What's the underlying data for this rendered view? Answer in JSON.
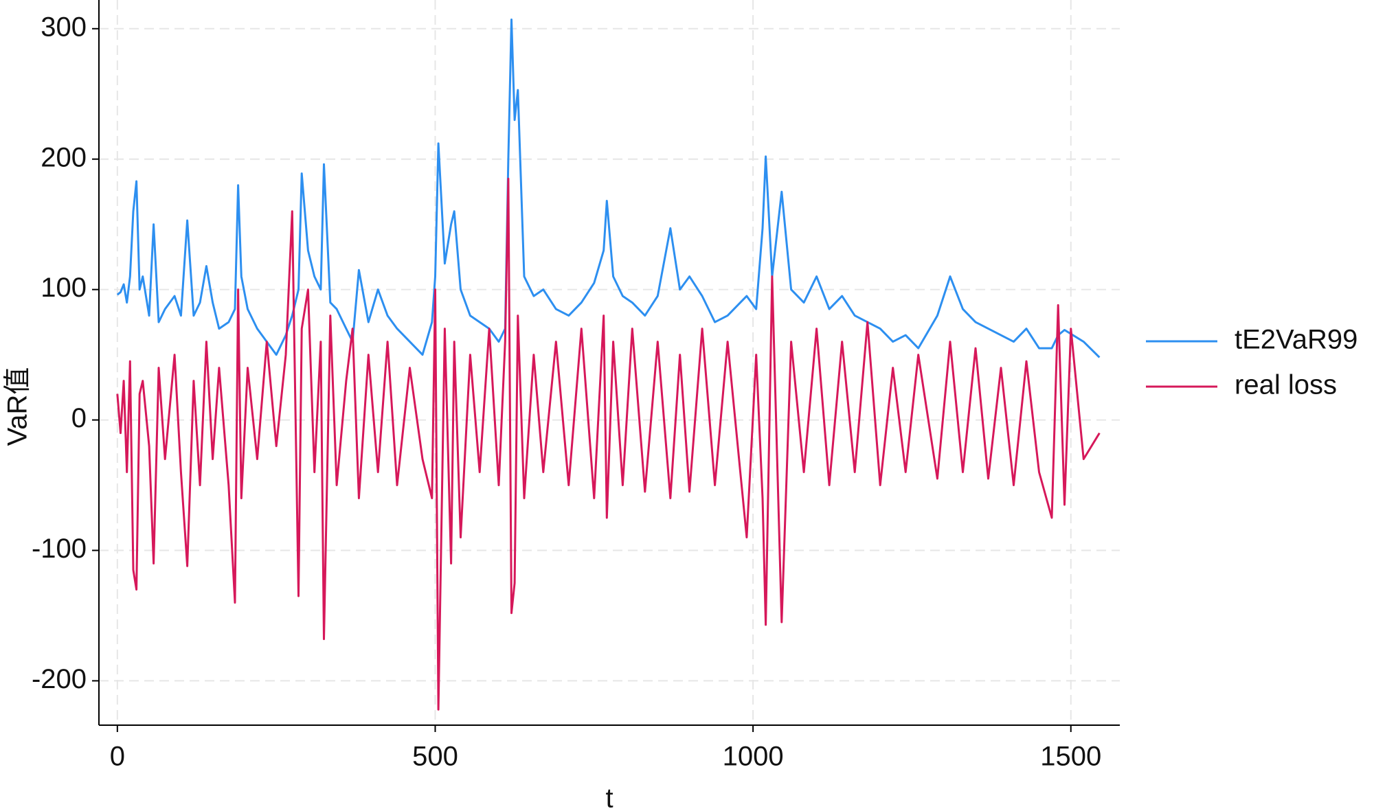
{
  "chart_data": {
    "type": "line",
    "x_label": "t",
    "y_label": "VaR值",
    "x": [
      0,
      5,
      10,
      15,
      20,
      25,
      30,
      35,
      40,
      50,
      57,
      65,
      75,
      90,
      100,
      110,
      120,
      130,
      140,
      150,
      160,
      175,
      185,
      190,
      195,
      205,
      220,
      235,
      250,
      265,
      275,
      285,
      290,
      300,
      310,
      320,
      325,
      335,
      345,
      360,
      370,
      380,
      395,
      410,
      425,
      440,
      460,
      480,
      495,
      500,
      505,
      515,
      525,
      530,
      540,
      555,
      570,
      585,
      600,
      610,
      615,
      620,
      625,
      630,
      640,
      655,
      670,
      690,
      710,
      730,
      750,
      765,
      770,
      780,
      795,
      810,
      830,
      850,
      870,
      885,
      900,
      920,
      940,
      960,
      980,
      990,
      1005,
      1015,
      1020,
      1030,
      1045,
      1060,
      1080,
      1100,
      1120,
      1140,
      1160,
      1180,
      1200,
      1220,
      1240,
      1260,
      1290,
      1310,
      1330,
      1350,
      1370,
      1390,
      1410,
      1430,
      1450,
      1470,
      1480,
      1490,
      1500,
      1520,
      1545
    ],
    "series": [
      {
        "name": "tE2VaR99",
        "color": "#2d8ff0",
        "values": [
          96,
          98,
          104,
          90,
          110,
          160,
          183,
          100,
          110,
          80,
          150,
          75,
          85,
          95,
          80,
          153,
          80,
          90,
          118,
          90,
          70,
          75,
          85,
          180,
          110,
          85,
          70,
          60,
          50,
          65,
          80,
          100,
          189,
          130,
          110,
          100,
          196,
          90,
          85,
          70,
          60,
          115,
          75,
          100,
          80,
          70,
          60,
          50,
          75,
          110,
          212,
          120,
          150,
          160,
          100,
          80,
          75,
          70,
          60,
          70,
          200,
          307,
          230,
          253,
          110,
          95,
          100,
          85,
          80,
          90,
          105,
          130,
          168,
          110,
          95,
          90,
          80,
          95,
          147,
          100,
          110,
          95,
          75,
          80,
          90,
          95,
          85,
          147,
          202,
          110,
          175,
          100,
          90,
          110,
          85,
          95,
          80,
          75,
          70,
          60,
          65,
          55,
          80,
          110,
          85,
          75,
          70,
          65,
          60,
          70,
          55,
          55,
          65,
          69,
          66,
          60,
          48
        ]
      },
      {
        "name": "real loss",
        "color": "#d6185a",
        "values": [
          20,
          -10,
          30,
          -40,
          45,
          -115,
          -130,
          20,
          30,
          -20,
          -110,
          40,
          -30,
          50,
          -40,
          -112,
          30,
          -50,
          60,
          -30,
          40,
          -50,
          -140,
          100,
          -60,
          40,
          -30,
          60,
          -20,
          50,
          160,
          -135,
          70,
          100,
          -40,
          60,
          -168,
          80,
          -50,
          30,
          70,
          -60,
          50,
          -40,
          60,
          -50,
          40,
          -30,
          -60,
          100,
          -222,
          70,
          -110,
          60,
          -90,
          50,
          -40,
          70,
          -50,
          60,
          185,
          -148,
          -125,
          80,
          -60,
          50,
          -40,
          60,
          -50,
          70,
          -60,
          80,
          -75,
          60,
          -50,
          70,
          -55,
          60,
          -60,
          50,
          -55,
          70,
          -50,
          60,
          -40,
          -90,
          50,
          -60,
          -157,
          110,
          -155,
          60,
          -40,
          70,
          -50,
          60,
          -40,
          75,
          -50,
          40,
          -40,
          50,
          -45,
          60,
          -40,
          55,
          -45,
          40,
          -50,
          45,
          -40,
          -75,
          88,
          -65,
          70,
          -30,
          -10
        ]
      }
    ],
    "xlim": [
      -29,
      1577
    ],
    "ylim": [
      -234,
      322
    ],
    "xticks": [
      0,
      500,
      1000,
      1500
    ],
    "yticks": [
      -200,
      -100,
      0,
      100,
      200,
      300
    ],
    "grid": true,
    "legend": "right"
  }
}
